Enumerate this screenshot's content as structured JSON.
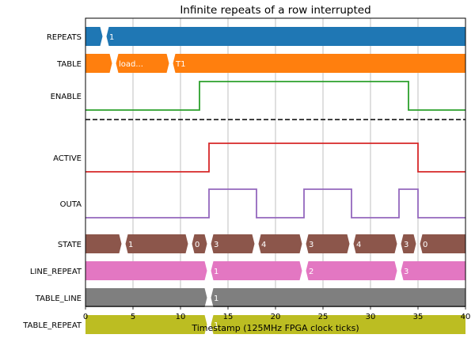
{
  "chart_data": {
    "type": "timing",
    "title": "Infinite repeats of a row interrupted",
    "xlabel": "Timestamp (125MHz FPGA clock ticks)",
    "xlim": [
      0,
      40
    ],
    "xticks": [
      0,
      5,
      10,
      15,
      20,
      25,
      30,
      35,
      40
    ],
    "grid": "vertical",
    "divider_after_row": "ENABLE",
    "colors": {
      "REPEATS": "#1f77b4",
      "TABLE": "#ff7f0e",
      "ENABLE": "#2ca02c",
      "ACTIVE": "#d62728",
      "OUTA": "#9467bd",
      "STATE": "#8c564b",
      "LINE_REPEAT": "#e377c2",
      "TABLE_LINE": "#7f7f7f",
      "TABLE_REPEAT": "#bcbd22"
    },
    "signals": [
      {
        "name": "REPEATS",
        "kind": "bus",
        "transitions": [
          2
        ],
        "labels": [
          "",
          "1"
        ]
      },
      {
        "name": "TABLE",
        "kind": "bus",
        "transitions": [
          3,
          9
        ],
        "labels": [
          "",
          "load...",
          "T1"
        ]
      },
      {
        "name": "ENABLE",
        "kind": "bit",
        "initial": 0,
        "edges": [
          12,
          34
        ],
        "tall": true
      },
      {
        "name": "ACTIVE",
        "kind": "bit",
        "initial": 0,
        "edges": [
          13,
          35
        ],
        "tall": true
      },
      {
        "name": "OUTA",
        "kind": "bit",
        "initial": 0,
        "edges": [
          13,
          18,
          23,
          28,
          33,
          35
        ],
        "tall": true
      },
      {
        "name": "STATE",
        "kind": "bus",
        "transitions": [
          4,
          11,
          13,
          18,
          23,
          28,
          33,
          35
        ],
        "labels": [
          "",
          "1",
          "0",
          "3",
          "4",
          "3",
          "4",
          "3",
          "0"
        ]
      },
      {
        "name": "LINE_REPEAT",
        "kind": "bus",
        "transitions": [
          13,
          23,
          33
        ],
        "labels": [
          "",
          "1",
          "2",
          "3"
        ]
      },
      {
        "name": "TABLE_LINE",
        "kind": "bus",
        "transitions": [
          13
        ],
        "labels": [
          "",
          "1"
        ]
      },
      {
        "name": "TABLE_REPEAT",
        "kind": "bus",
        "transitions": [
          13
        ],
        "labels": [
          "",
          "1"
        ]
      }
    ]
  }
}
